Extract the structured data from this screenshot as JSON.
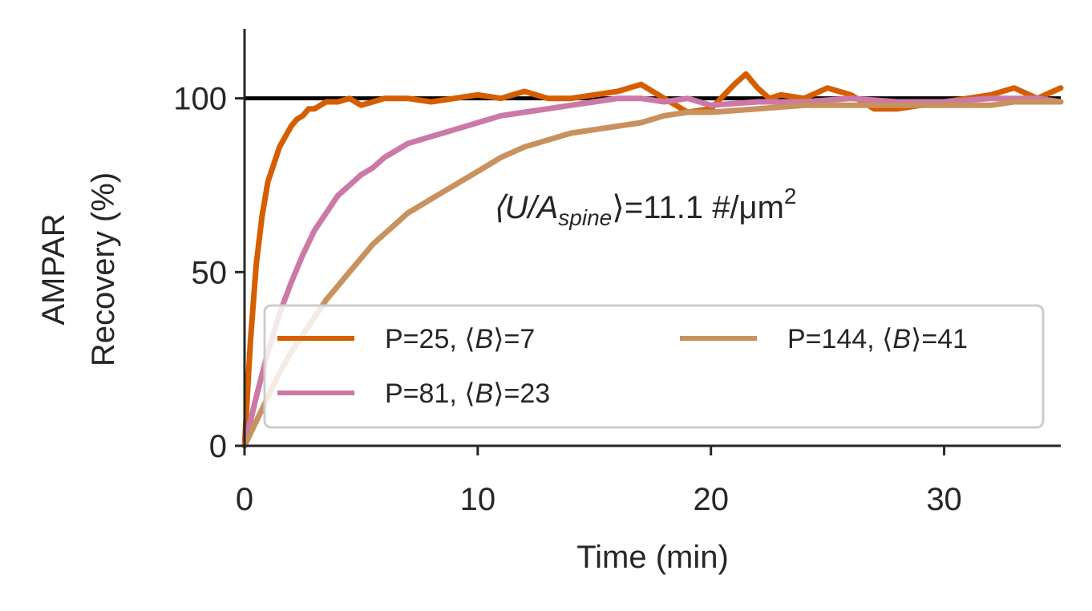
{
  "chart_data": {
    "type": "line",
    "title": "",
    "xlabel": "Time (min)",
    "ylabel_lines": [
      "AMPAR",
      "Recovery (%)"
    ],
    "xlim": [
      0,
      35
    ],
    "ylim": [
      0,
      120
    ],
    "xticks": [
      0,
      10,
      20,
      30
    ],
    "yticks": [
      0,
      50,
      100
    ],
    "grid": false,
    "legend_placement": "lower-right",
    "reference_line": {
      "y": 100,
      "color": "#000000"
    },
    "annotation": {
      "prefix": "⟨U/A",
      "sub": "spine",
      "mid": "⟩=11.1 #/μm",
      "sup": "2"
    },
    "series": [
      {
        "name_prefix": "P=25, ⟨",
        "name_var": "B",
        "name_suffix": "⟩=7",
        "color": "#d55e00",
        "x": [
          0,
          0.25,
          0.5,
          0.75,
          1,
          1.25,
          1.5,
          1.75,
          2,
          2.25,
          2.5,
          2.75,
          3,
          3.5,
          4,
          4.5,
          5,
          5.5,
          6,
          7,
          8,
          9,
          10,
          11,
          12,
          13,
          14,
          15,
          16,
          17,
          18,
          19,
          20,
          21,
          21.5,
          22,
          22.5,
          23,
          24,
          25,
          26,
          27,
          28,
          29,
          30,
          31,
          32,
          33,
          34,
          35
        ],
        "y": [
          0,
          30,
          52,
          66,
          76,
          81,
          86,
          89,
          92,
          94,
          95,
          97,
          97,
          99,
          99,
          100,
          98,
          99,
          100,
          100,
          99,
          100,
          101,
          100,
          102,
          100,
          100,
          101,
          102,
          104,
          100,
          96,
          97,
          104,
          107,
          103,
          100,
          101,
          100,
          103,
          101,
          97,
          97,
          98,
          99,
          100,
          101,
          103,
          100,
          103
        ]
      },
      {
        "name_prefix": "P=81, ⟨",
        "name_var": "B",
        "name_suffix": "⟩=23",
        "color": "#cc79a7",
        "x": [
          0,
          0.5,
          1,
          1.5,
          2,
          2.5,
          3,
          3.5,
          4,
          4.5,
          5,
          5.5,
          6,
          6.5,
          7,
          7.5,
          8,
          8.5,
          9,
          10,
          11,
          12,
          13,
          14,
          15,
          16,
          17,
          18,
          19,
          20,
          22,
          24,
          26,
          28,
          30,
          32,
          34,
          35
        ],
        "y": [
          0,
          14,
          27,
          38,
          47,
          55,
          62,
          67,
          72,
          75,
          78,
          80,
          83,
          85,
          87,
          88,
          89,
          90,
          91,
          93,
          95,
          96,
          97,
          98,
          99,
          100,
          100,
          99,
          100,
          98,
          99,
          99,
          100,
          99,
          99,
          100,
          100,
          99
        ]
      },
      {
        "name_prefix": "P=144, ⟨",
        "name_var": "B",
        "name_suffix": "⟩=41",
        "color": "#c8915e",
        "x": [
          0,
          0.5,
          1,
          1.5,
          2,
          2.5,
          3,
          3.5,
          4,
          4.5,
          5,
          5.5,
          6,
          6.5,
          7,
          7.5,
          8,
          9,
          10,
          11,
          12,
          13,
          14,
          15,
          16,
          17,
          18,
          19,
          20,
          22,
          24,
          26,
          28,
          30,
          32,
          33,
          34,
          35
        ],
        "y": [
          0,
          7,
          14,
          21,
          27,
          32,
          37,
          42,
          46,
          50,
          54,
          58,
          61,
          64,
          67,
          69,
          71,
          75,
          79,
          83,
          86,
          88,
          90,
          91,
          92,
          93,
          95,
          96,
          96,
          97,
          98,
          98,
          98,
          98,
          98,
          99,
          99,
          99
        ]
      }
    ]
  }
}
